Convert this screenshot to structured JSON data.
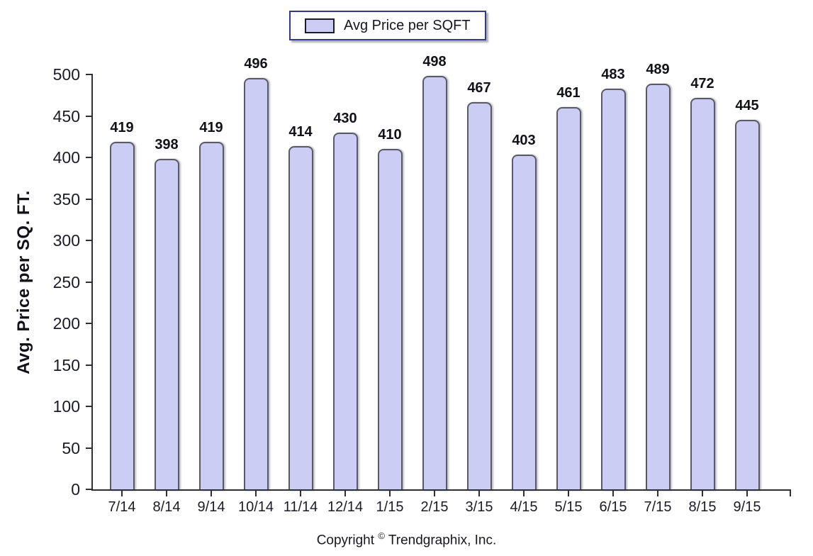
{
  "legend": {
    "label": "Avg Price per SQFT"
  },
  "axes": {
    "ylabel": "Avg. Price per SQ. FT."
  },
  "footer": {
    "word": "Copyright",
    "symbol": "©",
    "company": "Trendgraphix, Inc."
  },
  "colors": {
    "bar_fill": "#cbcdf5",
    "bar_border": "#5a5a66",
    "axis": "#2f2f33",
    "legend_border": "#343a85",
    "text": "#17171f"
  },
  "chart_data": {
    "type": "bar",
    "categories": [
      "7/14",
      "8/14",
      "9/14",
      "10/14",
      "11/14",
      "12/14",
      "1/15",
      "2/15",
      "3/15",
      "4/15",
      "5/15",
      "6/15",
      "7/15",
      "8/15",
      "9/15"
    ],
    "values": [
      419,
      398,
      419,
      496,
      414,
      430,
      410,
      498,
      467,
      403,
      461,
      483,
      489,
      472,
      445
    ],
    "series": [
      {
        "name": "Avg Price per SQFT",
        "values": [
          419,
          398,
          419,
          496,
          414,
          430,
          410,
          498,
          467,
          403,
          461,
          483,
          489,
          472,
          445
        ]
      }
    ],
    "title": "",
    "xlabel": "",
    "ylabel": "Avg. Price per SQ. FT.",
    "ylim": [
      0,
      500
    ],
    "ytick_step": 50,
    "yticks": [
      0,
      50,
      100,
      150,
      200,
      250,
      300,
      350,
      400,
      450,
      500
    ],
    "bar_value_labels": true,
    "grid": false,
    "legend_position": "top-center",
    "footer": "Copyright © Trendgraphix, Inc."
  }
}
